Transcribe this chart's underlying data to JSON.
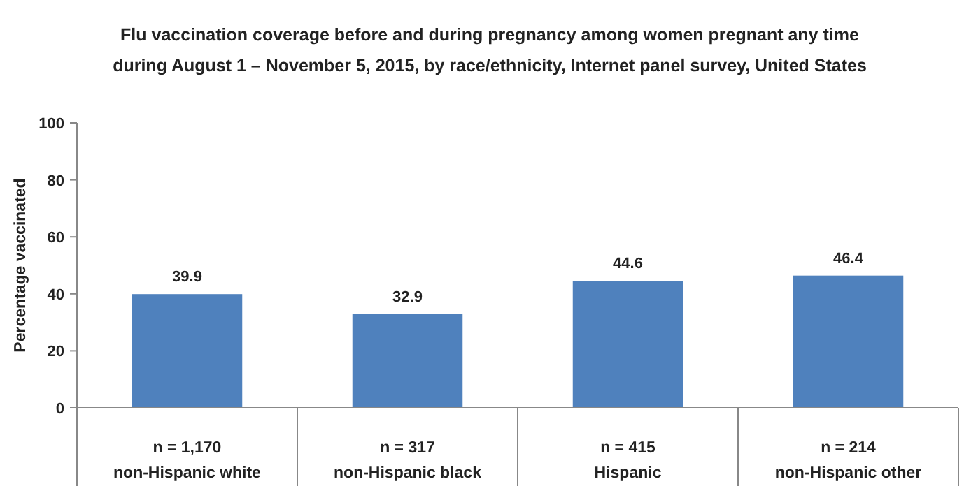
{
  "chart_data": {
    "type": "bar",
    "title": "Flu vaccination coverage before and during pregnancy among women pregnant any time\nduring August 1 – November 5, 2015, by race/ethnicity, Internet panel survey, United States",
    "ylabel": "Percentage vaccinated",
    "categories": [
      "n = 1,170\nnon-Hispanic white",
      "n = 317\nnon-Hispanic black",
      "n = 415\nHispanic",
      "n = 214\nnon-Hispanic other"
    ],
    "values": [
      39.9,
      32.9,
      44.6,
      46.4
    ],
    "color": "#4f81bd",
    "ylim": [
      0,
      100
    ],
    "yticks": [
      0,
      20,
      40,
      60,
      80,
      100
    ],
    "data_labels": true,
    "grid": false
  }
}
